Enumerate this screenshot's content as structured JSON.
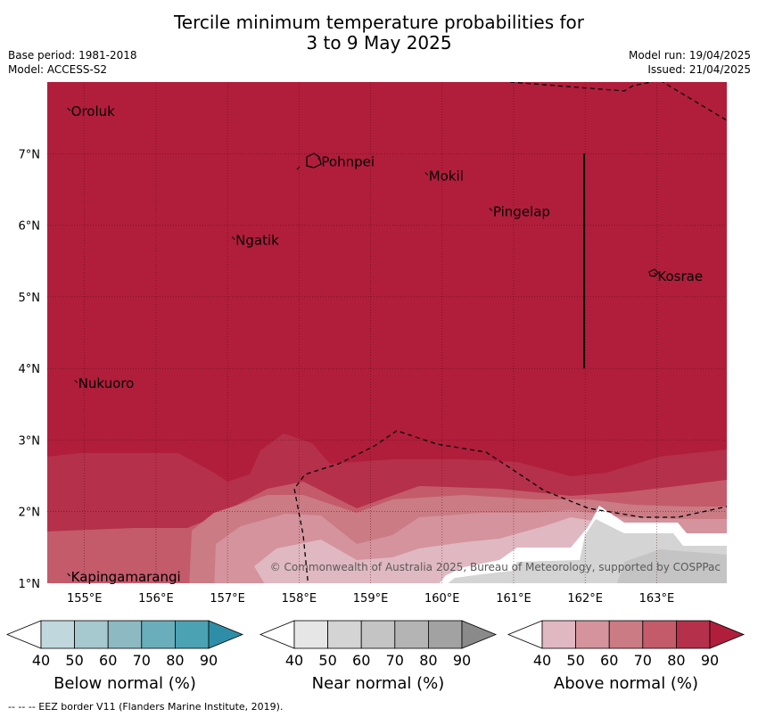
{
  "title": {
    "line1": "Tercile minimum temperature probabilities for",
    "line2": "3 to 9 May 2025"
  },
  "meta": {
    "base_period": "Base period: 1981-2018",
    "model": "Model: ACCESS-S2",
    "model_run": "Model run: 19/04/2025",
    "issued": "Issued: 21/04/2025"
  },
  "map": {
    "lon_ticks": [
      "155°E",
      "156°E",
      "157°E",
      "158°E",
      "159°E",
      "160°E",
      "161°E",
      "162°E",
      "163°E"
    ],
    "lat_ticks": [
      "7°N",
      "6°N",
      "5°N",
      "4°N",
      "3°N",
      "2°N",
      "1°N"
    ],
    "places": [
      {
        "name": "Oroluk",
        "lon": 154.8,
        "lat": 7.6
      },
      {
        "name": "Pohnpei",
        "lon": 158.3,
        "lat": 6.9
      },
      {
        "name": "Mokil",
        "lon": 159.8,
        "lat": 6.7
      },
      {
        "name": "Pingelap",
        "lon": 160.7,
        "lat": 6.2
      },
      {
        "name": "Ngatik",
        "lon": 157.1,
        "lat": 5.8
      },
      {
        "name": "Kosrae",
        "lon": 163.0,
        "lat": 5.3
      },
      {
        "name": "Nukuoro",
        "lon": 154.9,
        "lat": 3.8
      },
      {
        "name": "Kapingamarangi",
        "lon": 154.8,
        "lat": 1.1
      }
    ],
    "copyright": "© Commonwealth of Australia 2025, Bureau of Meteorology, supported by COSPPac"
  },
  "legends": [
    {
      "title": "Below normal (%)",
      "ticks": [
        "40",
        "50",
        "60",
        "70",
        "80",
        "90"
      ],
      "colors": [
        "#ffffff",
        "#c1d7de",
        "#a6c8cf",
        "#8cb9c2",
        "#6aaebb",
        "#4aa2b2",
        "#2f8ea7"
      ]
    },
    {
      "title": "Near normal (%)",
      "ticks": [
        "40",
        "50",
        "60",
        "70",
        "80",
        "90"
      ],
      "colors": [
        "#ffffff",
        "#e6e6e6",
        "#d4d4d4",
        "#c4c4c4",
        "#b4b4b4",
        "#a2a2a2",
        "#8a8a8a"
      ]
    },
    {
      "title": "Above normal (%)",
      "ticks": [
        "40",
        "50",
        "60",
        "70",
        "80",
        "90"
      ],
      "colors": [
        "#ffffff",
        "#e0b8c1",
        "#d4939d",
        "#ca7b84",
        "#c35b6b",
        "#b5304a",
        "#b01e3b"
      ]
    }
  ],
  "footer": "--  --  -- EEZ border V11 (Flanders Marine Institute, 2019)."
}
